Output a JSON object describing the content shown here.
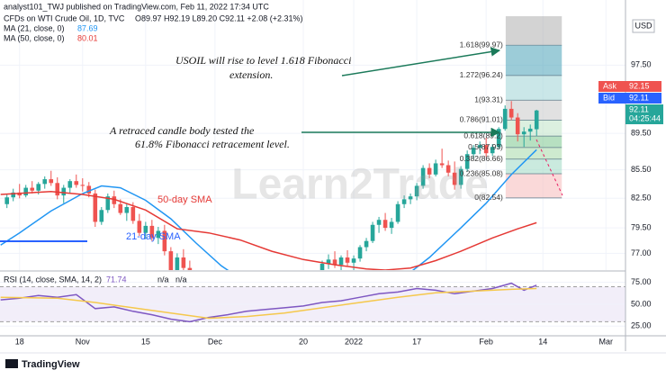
{
  "header": {
    "publisher": "analyst101_TWJ published on TradingView.com, Feb 11, 2022 17:34 UTC",
    "symbol": "CFDs on WTI Crude Oil, 1D, TVC",
    "ohlc": "O89.97 H92.19 L89.20 C92.11 +2.08 (+2.31%)",
    "ma21_label": "MA (21, close, 0)",
    "ma21_value": 87.69,
    "ma50_label": "MA (50, close, 0)",
    "ma50_value": 80.01,
    "currency": "USD"
  },
  "footer": {
    "brand": "TradingView",
    "watermark": "Learn2Trade"
  },
  "annotations": {
    "extension": [
      "USOIL will rise to level 1.618 Fibonacci",
      "extension."
    ],
    "retracement": [
      "A retraced candle body tested the",
      "61.8% Fibonacci retracement level."
    ],
    "sma50": "50-day SMA",
    "sma21": "21-day SMA"
  },
  "price_labels": {
    "ask_label": "Ask",
    "ask": 92.15,
    "bid_label": "Bid",
    "bid": 92.11,
    "last": 92.11,
    "countdown": "04:25:44"
  },
  "chart_data": [
    {
      "type": "candlestick",
      "log_scale": true,
      "ylim": [
        75.4,
        105.8
      ],
      "xlim": [
        -3.1,
        96.1
      ],
      "yticks": [
        {
          "value": 97.5,
          "label": "97.50"
        },
        {
          "value": 89.5,
          "label": "89.50"
        },
        {
          "value": 85.5,
          "label": "85.50"
        },
        {
          "value": 82.5,
          "label": "82.50"
        },
        {
          "value": 79.5,
          "label": "79.50"
        },
        {
          "value": 77,
          "label": "77.00"
        }
      ],
      "xticks": [
        {
          "value": 0,
          "label": "18"
        },
        {
          "value": 10,
          "label": "Nov"
        },
        {
          "value": 20,
          "label": "15"
        },
        {
          "value": 31,
          "label": "Dec"
        },
        {
          "value": 45,
          "label": "20"
        },
        {
          "value": 53,
          "label": "2022"
        },
        {
          "value": 63,
          "label": "17"
        },
        {
          "value": 74,
          "label": "Feb"
        },
        {
          "value": 83,
          "label": "14"
        },
        {
          "value": 93,
          "label": "Mar"
        }
      ],
      "grid": true,
      "up_color": "#26a69a",
      "down_color": "#ef5350",
      "x": [
        -2,
        -1,
        0,
        1,
        2,
        3,
        4,
        5,
        6,
        7,
        8,
        9,
        10,
        11,
        12,
        13,
        14,
        15,
        16,
        17,
        18,
        19,
        20,
        21,
        22,
        23,
        24,
        25,
        26,
        27,
        28,
        48,
        49,
        50,
        51,
        52,
        53,
        54,
        55,
        56,
        57,
        58,
        59,
        60,
        61,
        62,
        63,
        64,
        65,
        66,
        67,
        68,
        69,
        70,
        71,
        72,
        73,
        74,
        75,
        76,
        77,
        78,
        79,
        80,
        81,
        82
      ],
      "open": [
        81.9,
        82.6,
        83.1,
        82.8,
        83.6,
        83.3,
        84.0,
        84.5,
        84.1,
        82.8,
        83.6,
        84.3,
        83.9,
        83.8,
        83.0,
        80.1,
        81.3,
        82.7,
        81.9,
        81.0,
        81.6,
        80.2,
        79.0,
        79.7,
        78.5,
        79.2,
        77.2,
        74.9,
        76.6,
        75.6,
        73.3,
        75.0,
        76.0,
        76.4,
        75.9,
        76.6,
        76.1,
        76.5,
        77.6,
        78.2,
        79.8,
        80.3,
        79.5,
        80.1,
        81.9,
        82.4,
        82.7,
        83.8,
        85.7,
        85.0,
        86.2,
        86.0,
        85.2,
        83.9,
        85.6,
        87.2,
        87.9,
        88.2,
        87.3,
        88.0,
        90.0,
        92.3,
        91.3,
        89.4,
        89.7,
        89.97
      ],
      "high": [
        82.9,
        83.5,
        84.0,
        83.9,
        84.3,
        84.2,
        84.8,
        85.4,
        84.7,
        83.9,
        84.5,
        85.0,
        84.6,
        84.2,
        83.4,
        81.6,
        83.0,
        83.3,
        82.4,
        82.0,
        82.1,
        80.9,
        80.1,
        80.3,
        79.6,
        79.8,
        77.6,
        77.0,
        77.4,
        76.3,
        74.1,
        76.3,
        76.9,
        77.2,
        76.8,
        77.3,
        76.8,
        77.8,
        78.5,
        80.1,
        80.6,
        81.0,
        80.5,
        82.2,
        82.8,
        83.0,
        84.1,
        86.0,
        86.2,
        86.6,
        87.8,
        86.5,
        86.4,
        85.9,
        87.6,
        88.2,
        88.6,
        89.0,
        88.3,
        90.2,
        92.7,
        93.2,
        91.8,
        90.2,
        90.5,
        92.19
      ],
      "low": [
        81.5,
        82.2,
        82.5,
        82.6,
        83.0,
        82.9,
        83.5,
        83.8,
        82.4,
        82.0,
        83.0,
        83.6,
        83.2,
        82.6,
        79.6,
        79.8,
        81.0,
        81.5,
        80.8,
        80.2,
        79.9,
        78.7,
        78.4,
        78.2,
        77.9,
        76.8,
        74.5,
        74.2,
        75.0,
        72.8,
        71.8,
        74.8,
        75.5,
        75.6,
        75.2,
        75.8,
        75.4,
        76.2,
        77.2,
        78.0,
        79.0,
        79.2,
        78.9,
        79.9,
        81.5,
        81.9,
        82.3,
        83.5,
        84.6,
        84.8,
        85.7,
        84.8,
        83.4,
        83.5,
        85.3,
        86.7,
        87.2,
        86.9,
        87.0,
        87.8,
        89.8,
        91.0,
        88.6,
        88.0,
        88.7,
        89.2
      ],
      "close": [
        82.6,
        83.1,
        82.8,
        83.6,
        83.3,
        84.0,
        84.5,
        84.1,
        82.8,
        83.6,
        84.3,
        83.9,
        83.8,
        83.0,
        80.1,
        81.3,
        82.7,
        81.9,
        81.0,
        81.6,
        80.2,
        79.0,
        79.7,
        78.5,
        79.2,
        77.2,
        74.9,
        76.6,
        75.6,
        73.3,
        72.4,
        76.0,
        76.4,
        75.9,
        76.6,
        76.1,
        76.5,
        77.6,
        78.2,
        79.8,
        80.3,
        79.5,
        80.1,
        81.9,
        82.4,
        82.7,
        83.8,
        85.7,
        85.0,
        86.2,
        86.0,
        85.2,
        83.9,
        85.6,
        87.2,
        87.9,
        88.2,
        87.3,
        88.0,
        90.0,
        92.3,
        91.3,
        89.4,
        89.7,
        90.03,
        92.11
      ],
      "lines": [
        {
          "color": "#2196f3",
          "x": [
            -3,
            0,
            5,
            10,
            13,
            16,
            20,
            24,
            28,
            32,
            35,
            48,
            62,
            65,
            70,
            74,
            78,
            82
          ],
          "values": [
            77.8,
            79.0,
            81.2,
            83.0,
            83.8,
            83.6,
            82.3,
            80.4,
            78.0,
            75.8,
            74.6,
            null,
            75.2,
            76.6,
            79.5,
            82.0,
            85.0,
            87.69
          ]
        },
        {
          "color": "#e53935",
          "x": [
            -3,
            5,
            10,
            15,
            20,
            25,
            30,
            35,
            40,
            45,
            50,
            55,
            58,
            62,
            66,
            70,
            75,
            79,
            82
          ],
          "values": [
            82.9,
            83.2,
            82.9,
            82.4,
            81.3,
            79.4,
            79.0,
            78.3,
            77.2,
            76.4,
            75.9,
            75.5,
            75.4,
            75.6,
            76.3,
            77.2,
            78.5,
            79.4,
            80.01
          ]
        }
      ],
      "fib_levels": [
        {
          "label": "1.618(99.97)",
          "value": 99.97
        },
        {
          "label": "1.272(96.24)",
          "value": 96.24
        },
        {
          "label": "1(93.31)",
          "value": 93.31
        },
        {
          "label": "0.786(91.01)",
          "value": 91.01
        },
        {
          "label": "0.618(89.2)",
          "value": 89.2
        },
        {
          "label": "0.5(87.93)",
          "value": 87.93
        },
        {
          "label": "0.382(86.66)",
          "value": 86.66
        },
        {
          "label": "0.236(85.08)",
          "value": 85.08
        },
        {
          "label": "0(82.54)",
          "value": 82.54
        }
      ],
      "fib_band_colors": [
        "#4aa3b8",
        "#9fd4d6",
        "#c8c8c8",
        "#bfe3c7",
        "#7cc68e",
        "#a6d8a8",
        "#9ed8c3",
        "#f6b9b9"
      ]
    },
    {
      "type": "line",
      "title": "RSI (14, close, SMA, 14, 2)",
      "value_label": 71.74,
      "na": "n/a",
      "ylim": [
        15,
        87
      ],
      "xlim": [
        -3.1,
        96.1
      ],
      "yticks": [
        {
          "value": 75,
          "label": "75.00"
        },
        {
          "value": 50,
          "label": "50.00"
        },
        {
          "value": 25,
          "label": "25.00"
        }
      ],
      "band": [
        30,
        70
      ],
      "series": [
        {
          "color": "#7e57c2",
          "x": [
            -3,
            0,
            3,
            6,
            9,
            12,
            15,
            18,
            21,
            24,
            27,
            30,
            33,
            36,
            39,
            42,
            45,
            48,
            51,
            54,
            57,
            60,
            63,
            66,
            69,
            72,
            75,
            78,
            80,
            82
          ],
          "values": [
            55,
            57,
            60,
            58,
            61,
            45,
            47,
            42,
            38,
            33,
            30,
            35,
            38,
            42,
            44,
            46,
            48,
            52,
            54,
            58,
            62,
            64,
            68,
            66,
            62,
            65,
            68,
            74,
            66,
            71.74
          ]
        },
        {
          "color": "#f5c84c",
          "x": [
            -3,
            6,
            12,
            18,
            24,
            30,
            36,
            42,
            48,
            54,
            60,
            66,
            72,
            78,
            82
          ],
          "values": [
            58,
            57,
            52,
            46,
            40,
            34,
            36,
            40,
            46,
            52,
            58,
            63,
            65,
            67,
            68
          ]
        }
      ]
    }
  ]
}
